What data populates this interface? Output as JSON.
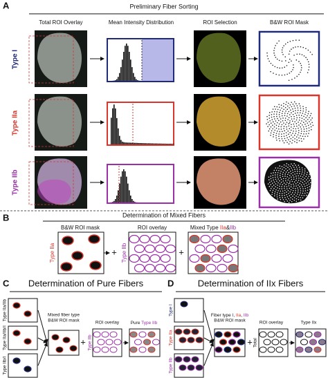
{
  "panel_a": {
    "letter": "A",
    "title": "Preliminary Fiber Sorting",
    "columns": [
      "Total ROI Overlay",
      "Mean Intensity Distribution",
      "ROI Selection",
      "B&W ROI Mask"
    ],
    "rows": [
      "Type I",
      "Type IIa",
      "Type IIb"
    ]
  },
  "panel_b": {
    "letter": "B",
    "title": "Determination of Mixed Fibers",
    "mask_label": "B&W ROI mask",
    "overlay_label": "ROI overlay",
    "result_label": [
      "Mixed Type ",
      "IIa",
      "&",
      "IIb"
    ],
    "row_labels": [
      "Type IIa",
      "Type IIb"
    ],
    "plus": "+"
  },
  "panel_c": {
    "letter": "C",
    "title": "Determination of Pure Fibers",
    "input_labels": [
      "Type IIa/IIb",
      "Type IIa/IIb/I",
      "Type IIb/I"
    ],
    "mask_label": [
      "Mixed fiber type",
      "B&W ROI mask"
    ],
    "overlay_label": "ROI overlay",
    "overlay_type": "Type IIb",
    "result_label": [
      "Pure ",
      "Type IIb"
    ],
    "plus": "+"
  },
  "panel_d": {
    "letter": "D",
    "title": "Determination of IIx Fibers",
    "input_labels": [
      "Type I",
      "Type IIa",
      "Type IIb"
    ],
    "mask_label": [
      "Fiber type ",
      "I",
      ", ",
      "IIa",
      ", ",
      "IIb",
      "B&W ROI mask"
    ],
    "overlay_label": "ROI overlay",
    "overlay_type": "Total",
    "result_label": "Type IIx",
    "plus": "+"
  }
}
